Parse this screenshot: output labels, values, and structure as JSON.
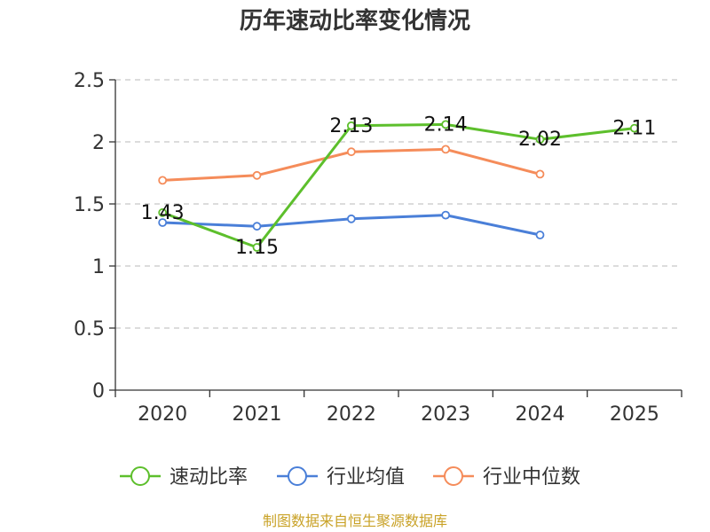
{
  "chart_data": {
    "type": "line",
    "title": "历年速动比率变化情况",
    "categories": [
      "2020",
      "2021",
      "2022",
      "2023",
      "2024",
      "2025"
    ],
    "ylim": [
      0,
      2.5
    ],
    "yticks": [
      0,
      0.5,
      1,
      1.5,
      2,
      2.5
    ],
    "ytick_labels": [
      "0",
      "0.5",
      "1",
      "1.5",
      "2",
      "2.5"
    ],
    "grid": true,
    "legend_position": "bottom",
    "series": [
      {
        "name": "速动比率",
        "color": "#5dbf2c",
        "values": [
          1.43,
          1.15,
          2.13,
          2.14,
          2.02,
          2.11
        ],
        "labels": [
          "1.43",
          "1.15",
          "2.13",
          "2.14",
          "2.02",
          "2.11"
        ]
      },
      {
        "name": "行业均值",
        "color": "#4a7fd8",
        "values": [
          1.35,
          1.32,
          1.38,
          1.41,
          1.25,
          null
        ]
      },
      {
        "name": "行业中位数",
        "color": "#f58c5a",
        "values": [
          1.69,
          1.73,
          1.92,
          1.94,
          1.74,
          null
        ]
      }
    ],
    "source": "制图数据来自恒生聚源数据库"
  }
}
